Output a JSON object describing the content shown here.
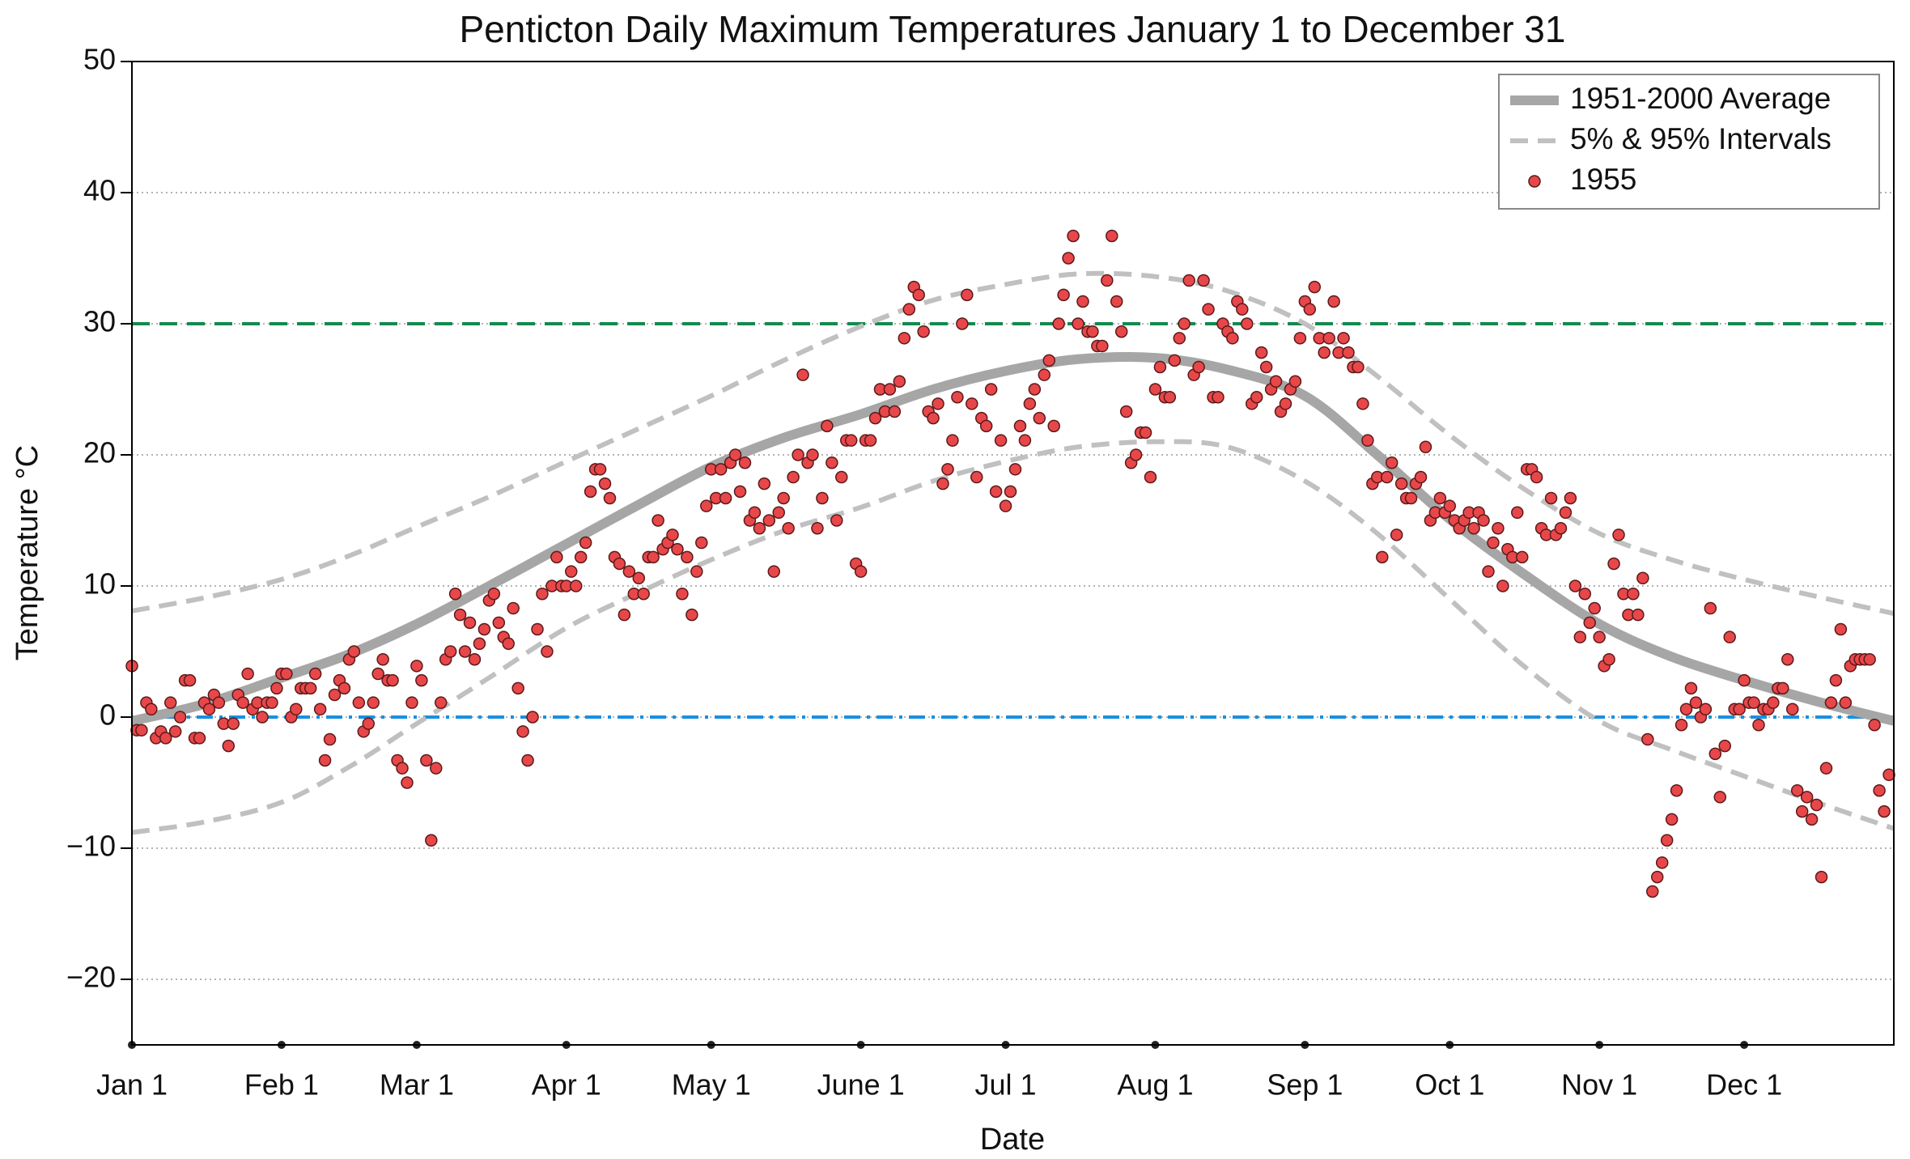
{
  "chart_data": {
    "type": "scatter",
    "title": "Penticton Daily Maximum Temperatures January 1 to December 31",
    "xlabel": "Date",
    "ylabel": "Temperature °C",
    "xlim": [
      0,
      365
    ],
    "ylim": [
      -25,
      50
    ],
    "xticks": [
      {
        "value": 0,
        "label": "Jan 1"
      },
      {
        "value": 31,
        "label": "Feb 1"
      },
      {
        "value": 59,
        "label": "Mar 1"
      },
      {
        "value": 90,
        "label": "Apr 1"
      },
      {
        "value": 120,
        "label": "May 1"
      },
      {
        "value": 151,
        "label": "June 1"
      },
      {
        "value": 181,
        "label": "Jul 1"
      },
      {
        "value": 212,
        "label": "Aug 1"
      },
      {
        "value": 243,
        "label": "Sep 1"
      },
      {
        "value": 273,
        "label": "Oct 1"
      },
      {
        "value": 304,
        "label": "Nov 1"
      },
      {
        "value": 334,
        "label": "Dec 1"
      }
    ],
    "yticks": [
      {
        "value": -20,
        "label": "−20"
      },
      {
        "value": -10,
        "label": "−10"
      },
      0,
      10,
      20,
      30,
      40,
      50
    ],
    "grid": true,
    "legend": "upper right",
    "reference_lines": [
      {
        "value": 30,
        "color": "#138a4e",
        "dash": "dashed"
      },
      {
        "value": 0,
        "color": "#1a8fe0",
        "dash": "dashdot"
      }
    ],
    "series": [
      {
        "name": "1951-2000 Average",
        "type": "line",
        "color": "#a6a6a6",
        "dash": "solid",
        "x": [
          0,
          15,
          31,
          45,
          59,
          74,
          90,
          105,
          120,
          135,
          151,
          166,
          181,
          196,
          212,
          227,
          243,
          258,
          273,
          288,
          304,
          319,
          334,
          349,
          365
        ],
        "values": [
          -0.3,
          1.0,
          3.0,
          4.8,
          7.1,
          10.0,
          13.2,
          16.2,
          19.1,
          21.3,
          23.1,
          25.0,
          26.4,
          27.3,
          27.4,
          26.5,
          24.5,
          20.0,
          15.1,
          11.0,
          7.1,
          4.6,
          2.8,
          1.2,
          -0.3
        ]
      },
      {
        "name": "5% & 95% Intervals",
        "type": "band-lines",
        "color": "#c0c0c0",
        "dash": "dashed",
        "x": [
          0,
          15,
          31,
          45,
          59,
          74,
          90,
          105,
          120,
          135,
          151,
          166,
          181,
          196,
          212,
          227,
          243,
          258,
          273,
          288,
          304,
          319,
          334,
          349,
          365
        ],
        "lower": [
          -8.8,
          -8.0,
          -6.5,
          -3.8,
          -0.5,
          3.0,
          6.8,
          9.5,
          12.0,
          14.2,
          16.0,
          18.0,
          19.5,
          20.6,
          21.0,
          20.6,
          18.0,
          14.0,
          9.0,
          4.0,
          -0.3,
          -2.5,
          -4.5,
          -6.5,
          -8.5
        ],
        "upper": [
          8.1,
          9.1,
          10.5,
          12.3,
          14.5,
          16.8,
          19.5,
          22.0,
          24.5,
          27.2,
          29.8,
          31.8,
          33.0,
          33.8,
          33.6,
          32.5,
          30.0,
          26.0,
          21.5,
          17.5,
          14.0,
          12.0,
          10.5,
          9.2,
          7.9
        ]
      },
      {
        "name": "1955",
        "type": "scatter",
        "color": "#e8474a",
        "edge": "#5a1a1a",
        "x": [
          0,
          1,
          2,
          3,
          4,
          5,
          6,
          7,
          8,
          9,
          10,
          11,
          12,
          13,
          14,
          15,
          16,
          17,
          18,
          19,
          20,
          21,
          22,
          23,
          24,
          25,
          26,
          27,
          28,
          29,
          30,
          31,
          32,
          33,
          34,
          35,
          36,
          37,
          38,
          39,
          40,
          41,
          42,
          43,
          44,
          45,
          46,
          47,
          48,
          49,
          50,
          51,
          52,
          53,
          54,
          55,
          56,
          57,
          58,
          59,
          60,
          61,
          62,
          63,
          64,
          65,
          66,
          67,
          68,
          69,
          70,
          71,
          72,
          73,
          74,
          75,
          76,
          77,
          78,
          79,
          80,
          81,
          82,
          83,
          84,
          85,
          86,
          87,
          88,
          89,
          90,
          91,
          92,
          93,
          94,
          95,
          96,
          97,
          98,
          99,
          100,
          101,
          102,
          103,
          104,
          105,
          106,
          107,
          108,
          109,
          110,
          111,
          112,
          113,
          114,
          115,
          116,
          117,
          118,
          119,
          120,
          121,
          122,
          123,
          124,
          125,
          126,
          127,
          128,
          129,
          130,
          131,
          132,
          133,
          134,
          135,
          136,
          137,
          138,
          139,
          140,
          141,
          142,
          143,
          144,
          145,
          146,
          147,
          148,
          149,
          150,
          151,
          152,
          153,
          154,
          155,
          156,
          157,
          158,
          159,
          160,
          161,
          162,
          163,
          164,
          165,
          166,
          167,
          168,
          169,
          170,
          171,
          172,
          173,
          174,
          175,
          176,
          177,
          178,
          179,
          180,
          181,
          182,
          183,
          184,
          185,
          186,
          187,
          188,
          189,
          190,
          191,
          192,
          193,
          194,
          195,
          196,
          197,
          198,
          199,
          200,
          201,
          202,
          203,
          204,
          205,
          206,
          207,
          208,
          209,
          210,
          211,
          212,
          213,
          214,
          215,
          216,
          217,
          218,
          219,
          220,
          221,
          222,
          223,
          224,
          225,
          226,
          227,
          228,
          229,
          230,
          231,
          232,
          233,
          234,
          235,
          236,
          237,
          238,
          239,
          240,
          241,
          242,
          243,
          244,
          245,
          246,
          247,
          248,
          249,
          250,
          251,
          252,
          253,
          254,
          255,
          256,
          257,
          258,
          259,
          260,
          261,
          262,
          263,
          264,
          265,
          266,
          267,
          268,
          269,
          270,
          271,
          272,
          273,
          274,
          275,
          276,
          277,
          278,
          279,
          280,
          281,
          282,
          283,
          284,
          285,
          286,
          287,
          288,
          289,
          290,
          291,
          292,
          293,
          294,
          295,
          296,
          297,
          298,
          299,
          300,
          301,
          302,
          303,
          304,
          305,
          306,
          307,
          308,
          309,
          310,
          311,
          312,
          313,
          314,
          315,
          316,
          317,
          318,
          319,
          320,
          321,
          322,
          323,
          324,
          325,
          326,
          327,
          328,
          329,
          330,
          331,
          332,
          333,
          334,
          335,
          336,
          337,
          338,
          339,
          340,
          341,
          342,
          343,
          344,
          345,
          346,
          347,
          348,
          349,
          350,
          351,
          352,
          353,
          354,
          355,
          356,
          357,
          358,
          359,
          360,
          361,
          362,
          363,
          364
        ],
        "values": [
          3.9,
          -1,
          -1,
          1.1,
          0.6,
          -1.6,
          -1.1,
          -1.6,
          1.1,
          -1.1,
          0,
          2.8,
          2.8,
          -1.6,
          -1.6,
          1.1,
          0.6,
          1.7,
          1.1,
          -0.5,
          -2.2,
          -0.5,
          1.7,
          1.1,
          3.3,
          0.6,
          1.1,
          0,
          1.1,
          1.1,
          2.2,
          3.3,
          3.3,
          0,
          0.6,
          2.2,
          2.2,
          2.2,
          3.3,
          0.6,
          -3.3,
          -1.7,
          1.7,
          2.8,
          2.2,
          4.4,
          5,
          1.1,
          -1.1,
          -0.5,
          1.1,
          3.3,
          4.4,
          2.8,
          2.8,
          -3.3,
          -3.9,
          -5,
          1.1,
          3.9,
          2.8,
          -3.3,
          -9.4,
          -3.9,
          1.1,
          4.4,
          5,
          9.4,
          7.8,
          5,
          7.2,
          4.4,
          5.6,
          6.7,
          8.9,
          9.4,
          7.2,
          6.1,
          5.6,
          8.3,
          2.2,
          -1.1,
          -3.3,
          0,
          6.7,
          9.4,
          5,
          10,
          12.2,
          10,
          10,
          11.1,
          10,
          12.2,
          13.3,
          17.2,
          18.9,
          18.9,
          17.8,
          16.7,
          12.2,
          11.7,
          7.8,
          11.1,
          9.4,
          10.6,
          9.4,
          12.2,
          12.2,
          15,
          12.8,
          13.3,
          13.9,
          12.8,
          9.4,
          12.2,
          7.8,
          11.1,
          13.3,
          16.1,
          18.9,
          16.7,
          18.9,
          16.7,
          19.4,
          20,
          17.2,
          19.4,
          15,
          15.6,
          14.4,
          17.8,
          15,
          11.1,
          15.6,
          16.7,
          14.4,
          18.3,
          20,
          26.1,
          19.4,
          20,
          14.4,
          16.7,
          22.2,
          19.4,
          15,
          18.3,
          21.1,
          21.1,
          11.7,
          11.1,
          21.1,
          21.1,
          22.8,
          25,
          23.3,
          25,
          23.3,
          25.6,
          28.9,
          31.1,
          32.8,
          32.2,
          29.4,
          23.3,
          22.8,
          23.9,
          17.8,
          18.9,
          21.1,
          24.4,
          30,
          32.2,
          23.9,
          18.3,
          22.8,
          22.2,
          25,
          17.2,
          21.1,
          16.1,
          17.2,
          18.9,
          22.2,
          21.1,
          23.9,
          25,
          22.8,
          26.1,
          27.2,
          22.2,
          30,
          32.2,
          35,
          36.7,
          30,
          31.7,
          29.4,
          29.4,
          28.3,
          28.3,
          33.3,
          36.7,
          31.7,
          29.4,
          23.3,
          19.4,
          20,
          21.7,
          21.7,
          18.3,
          25,
          26.7,
          24.4,
          24.4,
          27.2,
          28.9,
          30,
          33.3,
          26.1,
          26.7,
          33.3,
          31.1,
          24.4,
          24.4,
          30,
          29.4,
          28.9,
          31.7,
          31.1,
          30,
          23.9,
          24.4,
          27.8,
          26.7,
          25,
          25.6,
          23.3,
          23.9,
          25,
          25.6,
          28.9,
          31.7,
          31.1,
          32.8,
          28.9,
          27.8,
          28.9,
          31.7,
          27.8,
          28.9,
          27.8,
          26.7,
          26.7,
          23.9,
          21.1,
          17.8,
          18.3,
          12.2,
          18.3,
          19.4,
          13.9,
          17.8,
          16.7,
          16.7,
          17.8,
          18.3,
          20.6,
          15,
          15.6,
          16.7,
          15.6,
          16.1,
          15,
          14.4,
          15,
          15.6,
          14.4,
          15.6,
          15,
          11.1,
          13.3,
          14.4,
          10,
          12.8,
          12.2,
          15.6,
          12.2,
          18.9,
          18.9,
          18.3,
          14.4,
          13.9,
          16.7,
          13.9,
          14.4,
          15.6,
          16.7,
          10,
          6.1,
          9.4,
          7.2,
          8.3,
          6.1,
          3.9,
          4.4,
          11.7,
          13.9,
          9.4,
          7.8,
          9.4,
          7.8,
          10.6,
          -1.7,
          -13.3,
          -12.2,
          -11.1,
          -9.4,
          -7.8,
          -5.6,
          -0.6,
          0.6,
          2.2,
          1.1,
          0,
          0.6,
          8.3,
          -2.8,
          -6.1,
          -2.2,
          6.1,
          0.6,
          0.6,
          2.8,
          1.1,
          1.1,
          -0.6,
          0.6,
          0.6,
          1.1,
          2.2,
          2.2,
          4.4,
          0.6,
          -5.6,
          -7.2,
          -6.1,
          -7.8,
          -6.7,
          -12.2,
          -3.9,
          1.1,
          2.8,
          6.7,
          1.1,
          3.9,
          4.4,
          4.4,
          4.4,
          4.4,
          -0.6,
          -5.6,
          -7.2,
          -4.4
        ]
      }
    ]
  }
}
